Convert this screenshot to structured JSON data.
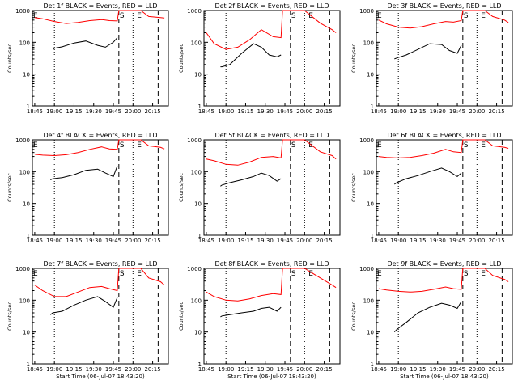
{
  "chart_data": [
    {
      "type": "line",
      "title": "Det 1f BLACK = Events, RED = LLD",
      "ylabel": "Counts/sec",
      "xlabel": "",
      "yscale": "log",
      "ylim": [
        1,
        1000
      ],
      "xticks": [
        "18:45",
        "19:00",
        "19:15",
        "19:30",
        "19:45",
        "20:00",
        "20:15"
      ],
      "saa_labels": [
        "E",
        "S",
        "E"
      ],
      "series": [
        {
          "name": "BLACK",
          "color": "#000000",
          "x": [
            18.98,
            19.0,
            19.1,
            19.25,
            19.4,
            19.55,
            19.65,
            19.75,
            19.8
          ],
          "y": [
            60,
            65,
            72,
            95,
            110,
            80,
            70,
            100,
            140
          ]
        },
        {
          "name": "RED",
          "color": "#ff0000",
          "x": [
            18.75,
            18.85,
            19.0,
            19.15,
            19.3,
            19.45,
            19.6,
            19.7,
            19.8,
            19.82,
            19.9,
            20.1,
            20.2,
            20.35,
            20.4
          ],
          "y": [
            600,
            550,
            450,
            390,
            420,
            480,
            520,
            480,
            470,
            1000,
            1000,
            1000,
            650,
            600,
            580
          ]
        }
      ]
    },
    {
      "type": "line",
      "title": "Det 2f BLACK = Events, RED = LLD",
      "ylabel": "Counts/sec",
      "xlabel": "",
      "yscale": "log",
      "ylim": [
        1,
        1000
      ],
      "xticks": [
        "18:45",
        "19:00",
        "19:15",
        "19:30",
        "19:45",
        "20:00",
        "20:15"
      ],
      "saa_labels": [
        "S",
        "E"
      ],
      "series": [
        {
          "name": "BLACK",
          "color": "#000000",
          "x": [
            18.93,
            18.95,
            19.05,
            19.2,
            19.35,
            19.45,
            19.55,
            19.65,
            19.7
          ],
          "y": [
            17,
            17,
            20,
            45,
            90,
            70,
            40,
            35,
            40
          ]
        },
        {
          "name": "RED",
          "color": "#ff0000",
          "x": [
            18.75,
            18.85,
            19.0,
            19.15,
            19.3,
            19.45,
            19.6,
            19.7,
            19.72,
            19.8,
            20.0,
            20.2,
            20.35,
            20.4
          ],
          "y": [
            200,
            90,
            60,
            70,
            120,
            250,
            150,
            140,
            1000,
            1000,
            1000,
            400,
            250,
            200
          ]
        }
      ]
    },
    {
      "type": "line",
      "title": "Det 3f BLACK = Events, RED = LLD",
      "ylabel": "Counts/sec",
      "xlabel": "",
      "yscale": "log",
      "ylim": [
        1,
        1000
      ],
      "xticks": [
        "18:45",
        "19:00",
        "19:15",
        "19:30",
        "19:45",
        "20:00",
        "20:15"
      ],
      "saa_labels": [
        "E",
        "S",
        "E"
      ],
      "series": [
        {
          "name": "BLACK",
          "color": "#000000",
          "x": [
            18.95,
            18.98,
            19.1,
            19.25,
            19.4,
            19.55,
            19.65,
            19.75,
            19.8
          ],
          "y": [
            30,
            32,
            40,
            60,
            90,
            85,
            55,
            45,
            80
          ]
        },
        {
          "name": "RED",
          "color": "#ff0000",
          "x": [
            18.75,
            18.85,
            19.0,
            19.15,
            19.3,
            19.45,
            19.6,
            19.7,
            19.8,
            19.82,
            19.9,
            20.1,
            20.2,
            20.35,
            20.4
          ],
          "y": [
            500,
            380,
            300,
            280,
            310,
            380,
            450,
            430,
            480,
            1000,
            1000,
            1000,
            650,
            500,
            420
          ]
        }
      ]
    },
    {
      "type": "line",
      "title": "Det 4f BLACK = Events, RED = LLD",
      "ylabel": "Counts/sec",
      "xlabel": "",
      "yscale": "log",
      "ylim": [
        1,
        1000
      ],
      "xticks": [
        "18:45",
        "19:00",
        "19:15",
        "19:30",
        "19:45",
        "20:00",
        "20:15"
      ],
      "saa_labels": [
        "E",
        "S",
        "E"
      ],
      "series": [
        {
          "name": "BLACK",
          "color": "#000000",
          "x": [
            18.95,
            18.98,
            19.1,
            19.25,
            19.4,
            19.55,
            19.65,
            19.75,
            19.8
          ],
          "y": [
            55,
            60,
            65,
            80,
            110,
            120,
            90,
            70,
            150
          ]
        },
        {
          "name": "RED",
          "color": "#ff0000",
          "x": [
            18.75,
            18.85,
            19.0,
            19.15,
            19.3,
            19.45,
            19.6,
            19.7,
            19.8,
            19.82,
            19.9,
            20.1,
            20.2,
            20.35,
            20.4
          ],
          "y": [
            350,
            330,
            320,
            340,
            400,
            500,
            600,
            520,
            500,
            1000,
            1000,
            1000,
            650,
            580,
            520
          ]
        }
      ]
    },
    {
      "type": "line",
      "title": "Det 5f BLACK = Events, RED = LLD",
      "ylabel": "Counts/sec",
      "xlabel": "",
      "yscale": "log",
      "ylim": [
        1,
        1000
      ],
      "xticks": [
        "18:45",
        "19:00",
        "19:15",
        "19:30",
        "19:45",
        "20:00",
        "20:15"
      ],
      "saa_labels": [
        "S",
        "E"
      ],
      "series": [
        {
          "name": "BLACK",
          "color": "#000000",
          "x": [
            18.93,
            18.95,
            19.05,
            19.2,
            19.35,
            19.45,
            19.55,
            19.65,
            19.7
          ],
          "y": [
            35,
            38,
            45,
            55,
            70,
            90,
            75,
            50,
            60
          ]
        },
        {
          "name": "RED",
          "color": "#ff0000",
          "x": [
            18.75,
            18.85,
            19.0,
            19.15,
            19.3,
            19.45,
            19.6,
            19.7,
            19.72,
            19.8,
            20.0,
            20.2,
            20.35,
            20.4
          ],
          "y": [
            250,
            220,
            170,
            160,
            200,
            280,
            300,
            270,
            1000,
            1000,
            1000,
            420,
            320,
            250
          ]
        }
      ]
    },
    {
      "type": "line",
      "title": "Det 6f BLACK = Events, RED = LLD",
      "ylabel": "Counts/sec",
      "xlabel": "",
      "yscale": "log",
      "ylim": [
        1,
        1000
      ],
      "xticks": [
        "18:45",
        "19:00",
        "19:15",
        "19:30",
        "19:45",
        "20:00",
        "20:15"
      ],
      "saa_labels": [
        "E",
        "S",
        "E"
      ],
      "series": [
        {
          "name": "BLACK",
          "color": "#000000",
          "x": [
            18.95,
            18.98,
            19.1,
            19.25,
            19.4,
            19.55,
            19.65,
            19.75,
            19.8
          ],
          "y": [
            40,
            45,
            60,
            75,
            100,
            130,
            100,
            70,
            90
          ]
        },
        {
          "name": "RED",
          "color": "#ff0000",
          "x": [
            18.75,
            18.85,
            19.0,
            19.15,
            19.3,
            19.45,
            19.6,
            19.7,
            19.8,
            19.82,
            19.9,
            20.1,
            20.2,
            20.35,
            20.4
          ],
          "y": [
            300,
            280,
            270,
            280,
            320,
            380,
            500,
            420,
            400,
            1000,
            1000,
            1000,
            650,
            580,
            540
          ]
        }
      ]
    },
    {
      "type": "line",
      "title": "Det 7f BLACK = Events, RED = LLD",
      "ylabel": "Counts/sec",
      "xlabel": "Start Time (06-Jul-07 18:43:20)",
      "yscale": "log",
      "ylim": [
        1,
        1000
      ],
      "xticks": [
        "18:45",
        "19:00",
        "19:15",
        "19:30",
        "19:45",
        "20:00",
        "20:15"
      ],
      "saa_labels": [
        "E",
        "S",
        "E"
      ],
      "series": [
        {
          "name": "BLACK",
          "color": "#000000",
          "x": [
            18.95,
            18.98,
            19.1,
            19.25,
            19.4,
            19.55,
            19.65,
            19.75,
            19.8
          ],
          "y": [
            35,
            40,
            45,
            70,
            100,
            130,
            90,
            60,
            120
          ]
        },
        {
          "name": "RED",
          "color": "#ff0000",
          "x": [
            18.75,
            18.85,
            19.0,
            19.15,
            19.3,
            19.45,
            19.6,
            19.7,
            19.8,
            19.82,
            19.9,
            20.1,
            20.2,
            20.35,
            20.4
          ],
          "y": [
            300,
            200,
            130,
            130,
            180,
            250,
            270,
            230,
            200,
            1000,
            1000,
            1000,
            500,
            380,
            300
          ]
        }
      ]
    },
    {
      "type": "line",
      "title": "Det 8f BLACK = Events, RED = LLD",
      "ylabel": "Counts/sec",
      "xlabel": "Start Time (06-Jul-07 18:43:20)",
      "yscale": "log",
      "ylim": [
        1,
        1000
      ],
      "xticks": [
        "18:45",
        "19:00",
        "19:15",
        "19:30",
        "19:45",
        "20:00",
        "20:15"
      ],
      "saa_labels": [
        "S",
        "E"
      ],
      "series": [
        {
          "name": "BLACK",
          "color": "#000000",
          "x": [
            18.93,
            18.95,
            19.05,
            19.2,
            19.35,
            19.45,
            19.55,
            19.65,
            19.7
          ],
          "y": [
            30,
            32,
            35,
            40,
            45,
            55,
            60,
            45,
            60
          ]
        },
        {
          "name": "RED",
          "color": "#ff0000",
          "x": [
            18.75,
            18.85,
            19.0,
            19.15,
            19.3,
            19.45,
            19.6,
            19.7,
            19.72,
            19.8,
            20.0,
            20.2,
            20.35,
            20.4
          ],
          "y": [
            180,
            130,
            100,
            95,
            110,
            140,
            160,
            150,
            1000,
            1000,
            1000,
            500,
            300,
            250
          ]
        }
      ]
    },
    {
      "type": "line",
      "title": "Det 9f BLACK = Events, RED = LLD",
      "ylabel": "Counts/sec",
      "xlabel": "Start Time (06-Jul-07 18:43:20)",
      "yscale": "log",
      "ylim": [
        1,
        1000
      ],
      "xticks": [
        "18:45",
        "19:00",
        "19:15",
        "19:30",
        "19:45",
        "20:00",
        "20:15"
      ],
      "saa_labels": [
        "E",
        "S",
        "E"
      ],
      "series": [
        {
          "name": "BLACK",
          "color": "#000000",
          "x": [
            18.95,
            18.98,
            19.1,
            19.25,
            19.4,
            19.55,
            19.65,
            19.75,
            19.8
          ],
          "y": [
            10,
            12,
            20,
            40,
            60,
            80,
            70,
            55,
            90
          ]
        },
        {
          "name": "RED",
          "color": "#ff0000",
          "x": [
            18.75,
            18.85,
            19.0,
            19.15,
            19.3,
            19.45,
            19.6,
            19.7,
            19.8,
            19.82,
            19.9,
            20.1,
            20.2,
            20.35,
            20.4
          ],
          "y": [
            230,
            210,
            190,
            180,
            190,
            220,
            260,
            230,
            220,
            1000,
            1000,
            1000,
            600,
            450,
            380
          ]
        }
      ]
    }
  ]
}
